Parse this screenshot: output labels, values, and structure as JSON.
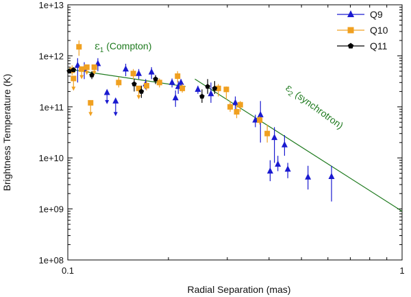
{
  "chart_data": {
    "type": "scatter",
    "title": "",
    "xlabel": "Radial Separation (mas)",
    "ylabel": "Brightness Temperature (K)",
    "xscale": "log",
    "yscale": "log",
    "xlim": [
      0.1,
      1
    ],
    "ylim": [
      100000000.0,
      10000000000000.0
    ],
    "x_ticks": [
      {
        "v": 0.1,
        "label": "0.1"
      },
      {
        "v": 1,
        "label": "1"
      }
    ],
    "y_ticks": [
      {
        "v": 100000000.0,
        "label": "1e+08"
      },
      {
        "v": 1000000000.0,
        "label": "1e+09"
      },
      {
        "v": 10000000000.0,
        "label": "1e+10"
      },
      {
        "v": 100000000000.0,
        "label": "1e+11"
      },
      {
        "v": 1000000000000.0,
        "label": "1e+12"
      },
      {
        "v": 10000000000000.0,
        "label": "1e+13"
      }
    ],
    "legend_position": "top-right",
    "annotations": [
      {
        "name": "compton",
        "sym": "ε",
        "sub": "1",
        "text": "(Compton)",
        "color": "#1e7a1e"
      },
      {
        "name": "synchrotron",
        "sym": "ε",
        "sub": "2",
        "text": "(synchrotron)",
        "color": "#1e7a1e"
      }
    ],
    "fit_lines": [
      {
        "name": "compton-fit",
        "color": "#1e7a1e",
        "points": [
          [
            0.1,
            550000000000.0
          ],
          [
            0.225,
            250000000000.0
          ]
        ]
      },
      {
        "name": "synchrotron-fit",
        "color": "#1e7a1e",
        "points": [
          [
            0.24,
            350000000000.0
          ],
          [
            1.0,
            900000000.0
          ]
        ]
      }
    ],
    "series": [
      {
        "name": "Q9",
        "marker": "triangle",
        "color": "#1a1ad0",
        "points": [
          [
            0.107,
            650000000000.0,
            300000000000.0,
            900000000000.0,
            false
          ],
          [
            0.112,
            550000000000.0,
            350000000000.0,
            750000000000.0,
            false
          ],
          [
            0.123,
            700000000000.0,
            500000000000.0,
            900000000000.0,
            false
          ],
          [
            0.131,
            190000000000.0,
            120000000000.0,
            null,
            true
          ],
          [
            0.139,
            130000000000.0,
            70000000000.0,
            null,
            true
          ],
          [
            0.149,
            550000000000.0,
            400000000000.0,
            700000000000.0,
            false
          ],
          [
            0.163,
            450000000000.0,
            350000000000.0,
            550000000000.0,
            false
          ],
          [
            0.171,
            280000000000.0,
            220000000000.0,
            350000000000.0,
            false
          ],
          [
            0.178,
            480000000000.0,
            350000000000.0,
            600000000000.0,
            false
          ],
          [
            0.205,
            300000000000.0,
            240000000000.0,
            360000000000.0,
            false
          ],
          [
            0.21,
            150000000000.0,
            100000000000.0,
            210000000000.0,
            false
          ],
          [
            0.214,
            250000000000.0,
            180000000000.0,
            320000000000.0,
            false
          ],
          [
            0.218,
            300000000000.0,
            250000000000.0,
            350000000000.0,
            false
          ],
          [
            0.245,
            220000000000.0,
            180000000000.0,
            260000000000.0,
            false
          ],
          [
            0.268,
            180000000000.0,
            120000000000.0,
            300000000000.0,
            false
          ],
          [
            0.317,
            120000000000.0,
            90000000000.0,
            160000000000.0,
            false
          ],
          [
            0.364,
            55000000000.0,
            40000000000.0,
            70000000000.0,
            false
          ],
          [
            0.377,
            70000000000.0,
            20000000000.0,
            130000000000.0,
            false
          ],
          [
            0.403,
            5500000000.0,
            3500000000.0,
            9000000000.0,
            false
          ],
          [
            0.415,
            25000000000.0,
            8000000000.0,
            40000000000.0,
            false
          ],
          [
            0.425,
            7500000000.0,
            5500000000.0,
            11000000000.0,
            false
          ],
          [
            0.445,
            18000000000.0,
            11000000000.0,
            28000000000.0,
            false
          ],
          [
            0.455,
            6000000000.0,
            4000000000.0,
            8000000000.0,
            false
          ],
          [
            0.523,
            4200000000.0,
            2400000000.0,
            7000000000.0,
            false
          ],
          [
            0.615,
            4300000000.0,
            1400000000.0,
            7000000000.0,
            false
          ]
        ]
      },
      {
        "name": "Q10",
        "marker": "square",
        "color": "#f0a020",
        "points": [
          [
            0.103,
            520000000000.0,
            420000000000.0,
            650000000000.0,
            false
          ],
          [
            0.104,
            360000000000.0,
            220000000000.0,
            null,
            true
          ],
          [
            0.108,
            1500000000000.0,
            1000000000000.0,
            2000000000000.0,
            false
          ],
          [
            0.11,
            550000000000.0,
            370000000000.0,
            null,
            true
          ],
          [
            0.114,
            600000000000.0,
            450000000000.0,
            null,
            true
          ],
          [
            0.117,
            120000000000.0,
            70000000000.0,
            null,
            true
          ],
          [
            0.12,
            600000000000.0,
            450000000000.0,
            null,
            true
          ],
          [
            0.142,
            300000000000.0,
            240000000000.0,
            380000000000.0,
            false
          ],
          [
            0.157,
            450000000000.0,
            350000000000.0,
            550000000000.0,
            false
          ],
          [
            0.163,
            230000000000.0,
            150000000000.0,
            null,
            true
          ],
          [
            0.172,
            260000000000.0,
            210000000000.0,
            320000000000.0,
            false
          ],
          [
            0.188,
            300000000000.0,
            240000000000.0,
            360000000000.0,
            false
          ],
          [
            0.213,
            400000000000.0,
            300000000000.0,
            500000000000.0,
            false
          ],
          [
            0.22,
            230000000000.0,
            190000000000.0,
            280000000000.0,
            false
          ],
          [
            0.282,
            230000000000.0,
            160000000000.0,
            280000000000.0,
            false
          ],
          [
            0.298,
            220000000000.0,
            140000000000.0,
            250000000000.0,
            false
          ],
          [
            0.306,
            100000000000.0,
            80000000000.0,
            130000000000.0,
            false
          ],
          [
            0.32,
            80000000000.0,
            60000000000.0,
            110000000000.0,
            false
          ],
          [
            0.328,
            110000000000.0,
            80000000000.0,
            130000000000.0,
            false
          ],
          [
            0.375,
            55000000000.0,
            45000000000.0,
            65000000000.0,
            false
          ],
          [
            0.395,
            30000000000.0,
            20000000000.0,
            45000000000.0,
            false
          ]
        ]
      },
      {
        "name": "Q11",
        "marker": "pentagon",
        "color": "#000000",
        "points": [
          [
            0.101,
            500000000000.0,
            450000000000.0,
            550000000000.0,
            false
          ],
          [
            0.104,
            530000000000.0,
            480000000000.0,
            580000000000.0,
            false
          ],
          [
            0.118,
            420000000000.0,
            350000000000.0,
            500000000000.0,
            false
          ],
          [
            0.158,
            280000000000.0,
            200000000000.0,
            350000000000.0,
            false
          ],
          [
            0.166,
            200000000000.0,
            150000000000.0,
            260000000000.0,
            false
          ],
          [
            0.183,
            350000000000.0,
            280000000000.0,
            420000000000.0,
            false
          ],
          [
            0.252,
            160000000000.0,
            120000000000.0,
            220000000000.0,
            false
          ],
          [
            0.262,
            250000000000.0,
            180000000000.0,
            350000000000.0,
            false
          ],
          [
            0.275,
            230000000000.0,
            180000000000.0,
            320000000000.0,
            false
          ]
        ]
      }
    ]
  }
}
